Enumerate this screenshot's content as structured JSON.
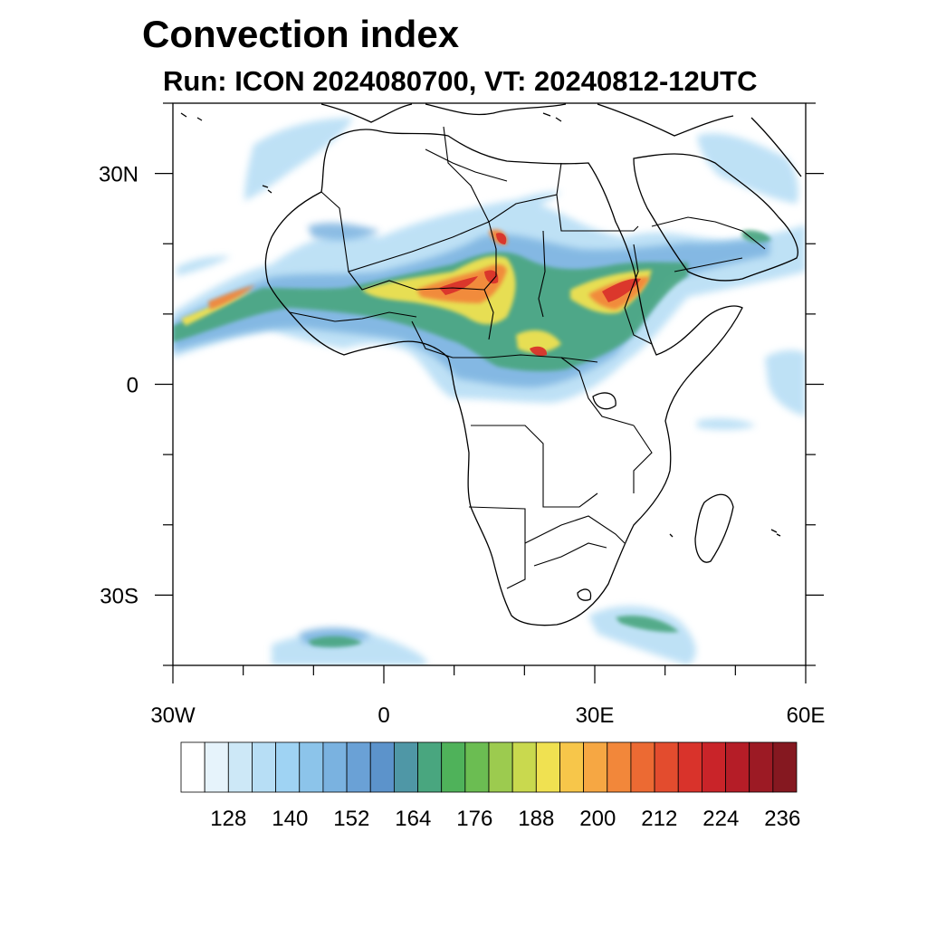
{
  "title": "Convection index",
  "subtitle": "Run: ICON 2024080700,  VT: 20240812-12UTC",
  "map": {
    "lon_range": [
      -30,
      60
    ],
    "lat_range": [
      -40,
      40
    ],
    "x_ticks": [
      {
        "lon": -30,
        "label": "30W"
      },
      {
        "lon": 0,
        "label": "0"
      },
      {
        "lon": 30,
        "label": "30E"
      },
      {
        "lon": 60,
        "label": "60E"
      }
    ],
    "y_ticks": [
      {
        "lat": 30,
        "label": "30N"
      },
      {
        "lat": 0,
        "label": "0"
      },
      {
        "lat": -30,
        "label": "30S"
      }
    ]
  },
  "colorbar": {
    "labels": [
      "128",
      "140",
      "152",
      "164",
      "176",
      "188",
      "200",
      "212",
      "224",
      "236"
    ],
    "colors": [
      "#ffffff",
      "#e6f3fb",
      "#cde8f7",
      "#b7def5",
      "#9fd3f3",
      "#8cc4ea",
      "#7ab2e0",
      "#6aa1d6",
      "#5c93cb",
      "#4f97a6",
      "#49a67f",
      "#4fb25a",
      "#6bbd52",
      "#9ccb4f",
      "#c9d94e",
      "#f0e151",
      "#f7c64a",
      "#f6a743",
      "#f2873a",
      "#ec6a33",
      "#e34c2e",
      "#d9332b",
      "#c92429",
      "#b51d27",
      "#9c1a24",
      "#851820"
    ]
  }
}
